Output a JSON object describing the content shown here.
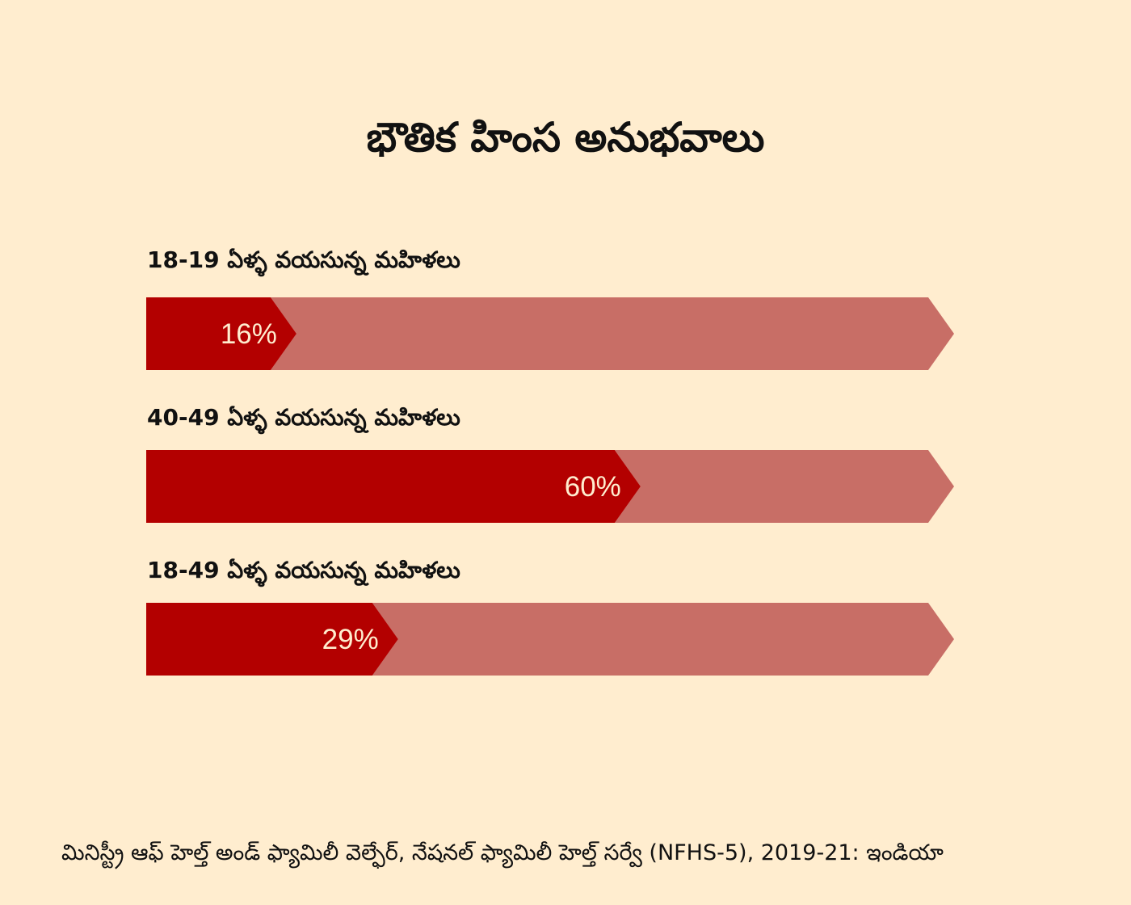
{
  "chart_data": {
    "type": "bar",
    "title": "భౌతిక హింస అనుభవాలు",
    "categories": [
      "18-19 ఏళ్ళ వయసున్న మహిళలు",
      "40-49 ఏళ్ళ వయసున్న మహిళలు",
      "18-49 ఏళ్ళ వయసున్న మహిళలు"
    ],
    "values": [
      16,
      60,
      29
    ],
    "value_labels": [
      "16%",
      "60%",
      "29%"
    ],
    "ylim": [
      0,
      100
    ],
    "orientation": "horizontal",
    "grid": false,
    "legend": "none",
    "colors": {
      "filled": "#B30000",
      "track": "#C86E66",
      "background": "#FFEDCF",
      "value_text": "#FFEDCF"
    },
    "source": "మినిస్ట్రీ ఆఫ్ హెల్త్ అండ్ ఫ్యామిలీ వెల్ఫేర్, నేషనల్ ఫ్యామిలీ హెల్త్ సర్వే (NFHS-5), 2019-21: ఇండియా"
  }
}
